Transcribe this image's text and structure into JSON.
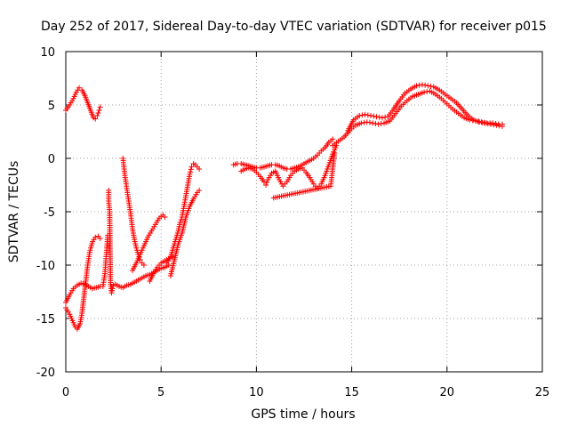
{
  "chart_data": {
    "type": "scatter",
    "title": "Day 252 of 2017, Sidereal Day-to-day VTEC variation (SDTVAR) for receiver p015",
    "xlabel": "GPS time / hours",
    "ylabel": "SDTVAR / TECUs",
    "xlim": [
      0,
      25
    ],
    "ylim": [
      -20,
      10
    ],
    "xticks": [
      0,
      5,
      10,
      15,
      20,
      25
    ],
    "yticks": [
      -20,
      -15,
      -10,
      -5,
      0,
      5,
      10
    ],
    "xtick_labels": [
      "0",
      "5",
      "10",
      "15",
      "20",
      "25"
    ],
    "ytick_labels": [
      "-20",
      "-15",
      "-10",
      "-5",
      "0",
      "5",
      "10"
    ],
    "grid": true,
    "marker": "+",
    "colors": {
      "points": "#ff0000",
      "grid": "#a0a0a0",
      "axes": "#000000"
    },
    "series": [
      {
        "name": "SDTVAR",
        "segments": [
          {
            "points": [
              [
                0.0,
                4.5
              ],
              [
                0.2,
                5.0
              ],
              [
                0.4,
                5.6
              ],
              [
                0.55,
                6.2
              ],
              [
                0.7,
                6.6
              ],
              [
                0.85,
                6.4
              ],
              [
                1.0,
                5.9
              ],
              [
                1.15,
                5.2
              ],
              [
                1.3,
                4.5
              ],
              [
                1.45,
                3.8
              ],
              [
                1.55,
                3.7
              ],
              [
                1.65,
                4.0
              ],
              [
                1.75,
                4.5
              ],
              [
                1.8,
                4.8
              ]
            ]
          },
          {
            "points": [
              [
                0.0,
                -14.0
              ],
              [
                0.2,
                -14.6
              ],
              [
                0.35,
                -15.2
              ],
              [
                0.5,
                -15.8
              ],
              [
                0.6,
                -16.0
              ],
              [
                0.75,
                -15.5
              ],
              [
                0.85,
                -14.5
              ],
              [
                0.95,
                -13.0
              ],
              [
                1.05,
                -11.5
              ],
              [
                1.15,
                -10.0
              ],
              [
                1.25,
                -8.8
              ],
              [
                1.4,
                -7.8
              ],
              [
                1.55,
                -7.4
              ],
              [
                1.7,
                -7.3
              ],
              [
                1.8,
                -7.5
              ]
            ]
          },
          {
            "points": [
              [
                0.0,
                -13.5
              ],
              [
                0.2,
                -12.8
              ],
              [
                0.4,
                -12.2
              ],
              [
                0.6,
                -11.9
              ],
              [
                0.8,
                -11.7
              ],
              [
                1.0,
                -11.8
              ],
              [
                1.2,
                -12.0
              ],
              [
                1.4,
                -12.2
              ],
              [
                1.6,
                -12.1
              ],
              [
                1.8,
                -12.0
              ]
            ]
          },
          {
            "points": [
              [
                1.95,
                -12.0
              ],
              [
                2.05,
                -10.8
              ],
              [
                2.1,
                -9.6
              ],
              [
                2.15,
                -8.4
              ],
              [
                2.2,
                -7.2
              ]
            ]
          },
          {
            "points": [
              [
                2.25,
                -3.0
              ],
              [
                2.25,
                -4.0
              ],
              [
                2.3,
                -5.0
              ],
              [
                2.35,
                -11.8
              ],
              [
                2.4,
                -12.6
              ],
              [
                2.45,
                -12.2
              ]
            ]
          },
          {
            "points": [
              [
                2.4,
                -12.0
              ],
              [
                2.6,
                -11.8
              ],
              [
                2.8,
                -12.0
              ],
              [
                3.0,
                -12.1
              ],
              [
                3.2,
                -11.9
              ],
              [
                3.4,
                -11.8
              ],
              [
                3.6,
                -11.6
              ],
              [
                3.8,
                -11.4
              ],
              [
                4.0,
                -11.2
              ],
              [
                4.2,
                -11.0
              ],
              [
                4.4,
                -10.9
              ],
              [
                4.6,
                -10.7
              ],
              [
                4.8,
                -10.5
              ],
              [
                5.0,
                -10.3
              ],
              [
                5.2,
                -10.2
              ],
              [
                5.4,
                -10.0
              ]
            ]
          },
          {
            "points": [
              [
                3.0,
                0.0
              ],
              [
                3.05,
                -0.8
              ],
              [
                3.1,
                -1.6
              ],
              [
                3.2,
                -2.8
              ],
              [
                3.3,
                -4.0
              ],
              [
                3.4,
                -5.2
              ],
              [
                3.5,
                -6.6
              ],
              [
                3.6,
                -7.6
              ],
              [
                3.7,
                -8.4
              ],
              [
                3.8,
                -9.0
              ],
              [
                3.9,
                -9.5
              ],
              [
                4.0,
                -9.8
              ],
              [
                4.1,
                -10.0
              ]
            ]
          },
          {
            "points": [
              [
                3.5,
                -10.5
              ],
              [
                3.7,
                -9.8
              ],
              [
                3.9,
                -9.0
              ],
              [
                4.1,
                -8.2
              ],
              [
                4.3,
                -7.4
              ],
              [
                4.5,
                -6.8
              ],
              [
                4.7,
                -6.2
              ],
              [
                4.9,
                -5.6
              ],
              [
                5.1,
                -5.3
              ],
              [
                5.2,
                -5.5
              ]
            ]
          },
          {
            "points": [
              [
                4.4,
                -11.5
              ],
              [
                4.6,
                -10.8
              ],
              [
                4.8,
                -10.2
              ],
              [
                5.0,
                -9.8
              ],
              [
                5.2,
                -9.6
              ],
              [
                5.4,
                -9.4
              ],
              [
                5.6,
                -9.2
              ]
            ]
          },
          {
            "points": [
              [
                5.3,
                -9.8
              ],
              [
                5.5,
                -9.2
              ],
              [
                5.7,
                -8.0
              ],
              [
                5.9,
                -6.8
              ],
              [
                6.0,
                -6.0
              ],
              [
                6.1,
                -5.5
              ],
              [
                6.2,
                -4.5
              ],
              [
                6.3,
                -3.5
              ],
              [
                6.4,
                -2.5
              ],
              [
                6.5,
                -1.5
              ],
              [
                6.6,
                -0.8
              ],
              [
                6.7,
                -0.5
              ],
              [
                6.8,
                -0.6
              ],
              [
                6.9,
                -0.8
              ],
              [
                7.0,
                -1.0
              ]
            ]
          },
          {
            "points": [
              [
                5.5,
                -11.0
              ],
              [
                5.7,
                -9.5
              ],
              [
                5.9,
                -8.0
              ],
              [
                6.1,
                -7.0
              ],
              [
                6.3,
                -5.5
              ],
              [
                6.5,
                -4.5
              ],
              [
                6.7,
                -3.8
              ],
              [
                6.9,
                -3.2
              ],
              [
                7.0,
                -3.0
              ]
            ]
          },
          {
            "points": [
              [
                8.8,
                -0.6
              ],
              [
                9.0,
                -0.5
              ],
              [
                9.2,
                -0.5
              ],
              [
                9.4,
                -0.6
              ],
              [
                9.6,
                -0.7
              ],
              [
                9.8,
                -0.8
              ],
              [
                10.0,
                -0.9
              ],
              [
                10.2,
                -0.9
              ],
              [
                10.4,
                -0.8
              ],
              [
                10.6,
                -0.7
              ],
              [
                10.8,
                -0.6
              ],
              [
                11.0,
                -0.6
              ],
              [
                11.2,
                -0.7
              ],
              [
                11.4,
                -0.9
              ],
              [
                11.6,
                -1.0
              ],
              [
                11.8,
                -1.0
              ],
              [
                12.0,
                -0.9
              ],
              [
                12.2,
                -0.8
              ],
              [
                12.4,
                -0.6
              ],
              [
                12.6,
                -0.4
              ],
              [
                12.8,
                -0.2
              ],
              [
                13.0,
                0.0
              ],
              [
                13.2,
                0.3
              ],
              [
                13.4,
                0.7
              ],
              [
                13.6,
                1.0
              ],
              [
                13.8,
                1.5
              ],
              [
                14.0,
                1.8
              ]
            ]
          },
          {
            "points": [
              [
                9.2,
                -1.2
              ],
              [
                9.4,
                -1.0
              ],
              [
                9.6,
                -0.9
              ],
              [
                9.8,
                -1.0
              ],
              [
                10.0,
                -1.3
              ],
              [
                10.2,
                -1.7
              ],
              [
                10.4,
                -2.2
              ],
              [
                10.5,
                -2.5
              ],
              [
                10.6,
                -2.0
              ],
              [
                10.8,
                -1.4
              ],
              [
                11.0,
                -1.2
              ],
              [
                11.2,
                -2.0
              ],
              [
                11.4,
                -2.6
              ],
              [
                11.6,
                -2.2
              ],
              [
                11.8,
                -1.6
              ],
              [
                12.0,
                -1.2
              ],
              [
                12.2,
                -1.0
              ],
              [
                12.4,
                -0.9
              ],
              [
                12.6,
                -1.3
              ],
              [
                12.8,
                -1.8
              ],
              [
                13.0,
                -2.4
              ],
              [
                13.2,
                -2.8
              ],
              [
                13.4,
                -2.4
              ],
              [
                13.6,
                -1.6
              ],
              [
                13.8,
                -0.6
              ],
              [
                14.0,
                0.4
              ],
              [
                14.2,
                1.2
              ]
            ]
          },
          {
            "points": [
              [
                10.9,
                -3.7
              ],
              [
                13.9,
                -2.6
              ],
              [
                14.0,
                -1.0
              ],
              [
                14.1,
                0.5
              ]
            ]
          },
          {
            "points": [
              [
                14.0,
                1.2
              ],
              [
                14.3,
                1.6
              ],
              [
                14.6,
                2.0
              ],
              [
                14.9,
                2.6
              ],
              [
                15.2,
                3.1
              ],
              [
                15.5,
                3.3
              ],
              [
                15.8,
                3.4
              ],
              [
                16.1,
                3.3
              ],
              [
                16.4,
                3.2
              ],
              [
                16.7,
                3.3
              ],
              [
                17.0,
                3.5
              ],
              [
                17.3,
                4.2
              ],
              [
                17.6,
                4.9
              ],
              [
                17.9,
                5.4
              ],
              [
                18.2,
                5.8
              ],
              [
                18.5,
                6.0
              ],
              [
                18.8,
                6.2
              ],
              [
                19.1,
                6.3
              ],
              [
                19.4,
                6.0
              ],
              [
                19.7,
                5.6
              ],
              [
                20.0,
                5.1
              ],
              [
                20.3,
                4.6
              ],
              [
                20.6,
                4.2
              ],
              [
                20.9,
                3.8
              ],
              [
                21.2,
                3.6
              ],
              [
                21.5,
                3.5
              ],
              [
                21.8,
                3.4
              ],
              [
                22.1,
                3.3
              ],
              [
                22.4,
                3.3
              ],
              [
                22.7,
                3.2
              ],
              [
                22.9,
                3.2
              ]
            ]
          },
          {
            "points": [
              [
                14.8,
                2.6
              ],
              [
                15.1,
                3.6
              ],
              [
                15.4,
                4.0
              ],
              [
                15.7,
                4.1
              ],
              [
                16.0,
                4.0
              ],
              [
                16.3,
                3.9
              ],
              [
                16.6,
                3.8
              ],
              [
                16.9,
                3.9
              ],
              [
                17.2,
                4.6
              ],
              [
                17.5,
                5.4
              ],
              [
                17.8,
                6.1
              ],
              [
                18.1,
                6.5
              ],
              [
                18.4,
                6.8
              ],
              [
                18.7,
                6.9
              ],
              [
                19.0,
                6.8
              ],
              [
                19.3,
                6.7
              ],
              [
                19.6,
                6.4
              ],
              [
                19.9,
                6.0
              ],
              [
                20.2,
                5.6
              ],
              [
                20.5,
                5.2
              ],
              [
                20.8,
                4.6
              ],
              [
                21.1,
                4.0
              ],
              [
                21.4,
                3.6
              ],
              [
                21.7,
                3.4
              ],
              [
                22.0,
                3.3
              ],
              [
                22.3,
                3.2
              ],
              [
                22.6,
                3.1
              ],
              [
                22.9,
                3.0
              ]
            ]
          }
        ]
      }
    ]
  }
}
